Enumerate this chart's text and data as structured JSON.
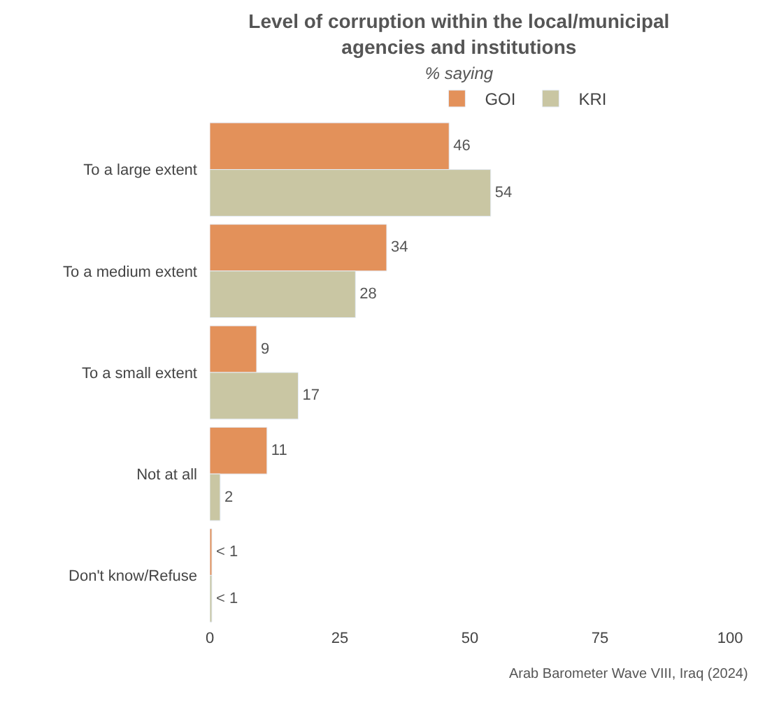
{
  "chart_data": {
    "type": "bar",
    "orientation": "horizontal",
    "title": "Level of corruption within the local/municipal agencies and institutions",
    "subtitle": "% saying",
    "categories": [
      "To a large extent",
      "To a medium extent",
      "To a small extent",
      "Not at all",
      "Don't know/Refuse"
    ],
    "series": [
      {
        "name": "GOI",
        "color": "#e3915a",
        "values": [
          46,
          34,
          9,
          11,
          0.4
        ],
        "value_labels": [
          "46",
          "34",
          "9",
          "11",
          "< 1"
        ]
      },
      {
        "name": "KRI",
        "color": "#c9c6a3",
        "values": [
          54,
          28,
          17,
          2,
          0.4
        ],
        "value_labels": [
          "54",
          "28",
          "17",
          "2",
          "< 1"
        ]
      }
    ],
    "xlim": [
      0,
      100
    ],
    "xticks": [
      0,
      25,
      50,
      75,
      100
    ],
    "legend": "top",
    "annotations": [
      "Arab Barometer Wave VIII, Iraq (2024)"
    ]
  }
}
